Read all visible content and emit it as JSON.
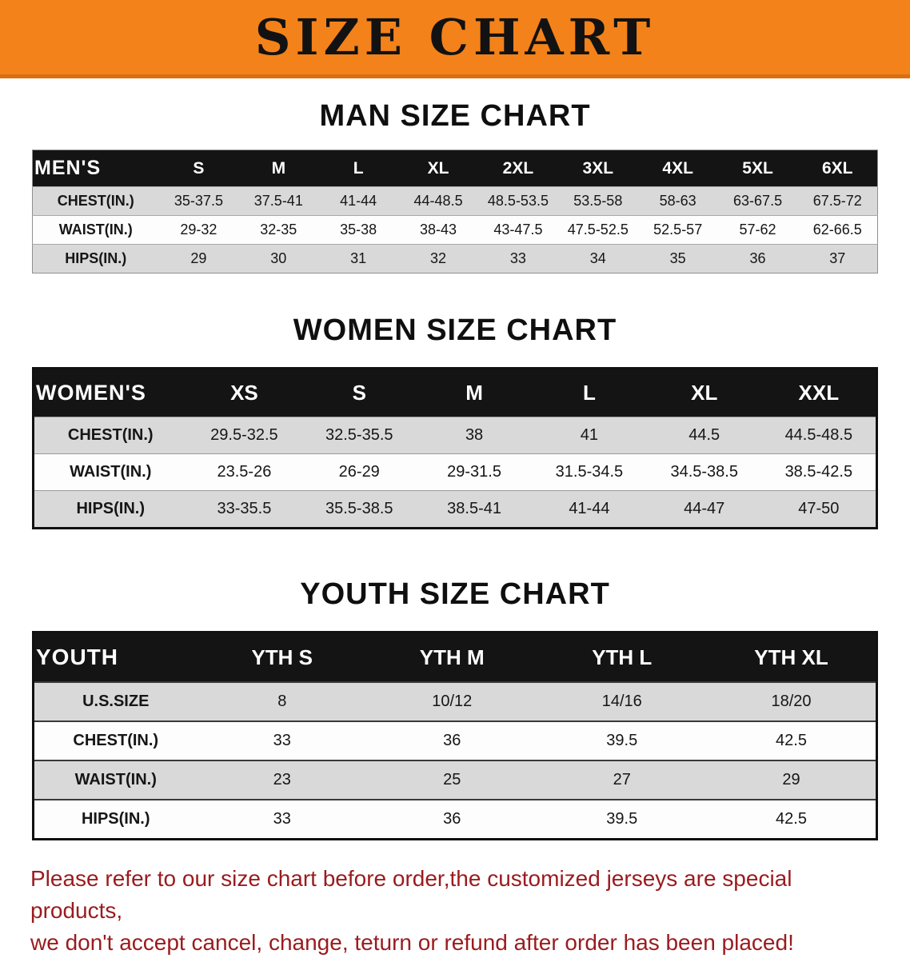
{
  "banner": {
    "title": "SIZE CHART"
  },
  "colors": {
    "banner_orange": "#F3821A",
    "table_header_black": "#141414",
    "row_gray": "#D9D9D9",
    "disclaimer_red": "#9A1B1E"
  },
  "sections": [
    {
      "title": "MAN SIZE CHART",
      "header_label": "MEN'S",
      "columns": [
        "S",
        "M",
        "L",
        "XL",
        "2XL",
        "3XL",
        "4XL",
        "5XL",
        "6XL"
      ],
      "rows": [
        {
          "label": "CHEST(IN.)",
          "values": [
            "35-37.5",
            "37.5-41",
            "41-44",
            "44-48.5",
            "48.5-53.5",
            "53.5-58",
            "58-63",
            "63-67.5",
            "67.5-72"
          ]
        },
        {
          "label": "WAIST(IN.)",
          "values": [
            "29-32",
            "32-35",
            "35-38",
            "38-43",
            "43-47.5",
            "47.5-52.5",
            "52.5-57",
            "57-62",
            "62-66.5"
          ]
        },
        {
          "label": "HIPS(IN.)",
          "values": [
            "29",
            "30",
            "31",
            "32",
            "33",
            "34",
            "35",
            "36",
            "37"
          ]
        }
      ]
    },
    {
      "title": "WOMEN SIZE CHART",
      "header_label": "WOMEN'S",
      "columns": [
        "XS",
        "S",
        "M",
        "L",
        "XL",
        "XXL"
      ],
      "rows": [
        {
          "label": "CHEST(IN.)",
          "values": [
            "29.5-32.5",
            "32.5-35.5",
            "38",
            "41",
            "44.5",
            "44.5-48.5"
          ]
        },
        {
          "label": "WAIST(IN.)",
          "values": [
            "23.5-26",
            "26-29",
            "29-31.5",
            "31.5-34.5",
            "34.5-38.5",
            "38.5-42.5"
          ]
        },
        {
          "label": "HIPS(IN.)",
          "values": [
            "33-35.5",
            "35.5-38.5",
            "38.5-41",
            "41-44",
            "44-47",
            "47-50"
          ]
        }
      ]
    },
    {
      "title": "YOUTH SIZE CHART",
      "header_label": "YOUTH",
      "columns": [
        "YTH S",
        "YTH M",
        "YTH L",
        "YTH XL"
      ],
      "rows": [
        {
          "label": "U.S.SIZE",
          "values": [
            "8",
            "10/12",
            "14/16",
            "18/20"
          ]
        },
        {
          "label": "CHEST(IN.)",
          "values": [
            "33",
            "36",
            "39.5",
            "42.5"
          ]
        },
        {
          "label": "WAIST(IN.)",
          "values": [
            "23",
            "25",
            "27",
            "29"
          ]
        },
        {
          "label": "HIPS(IN.)",
          "values": [
            "33",
            "36",
            "39.5",
            "42.5"
          ]
        }
      ]
    }
  ],
  "disclaimer": {
    "lines": [
      "Please refer to our size chart before order,the customized jerseys are special products,",
      "we don't accept cancel, change, teturn or refund after order has been placed!"
    ]
  }
}
